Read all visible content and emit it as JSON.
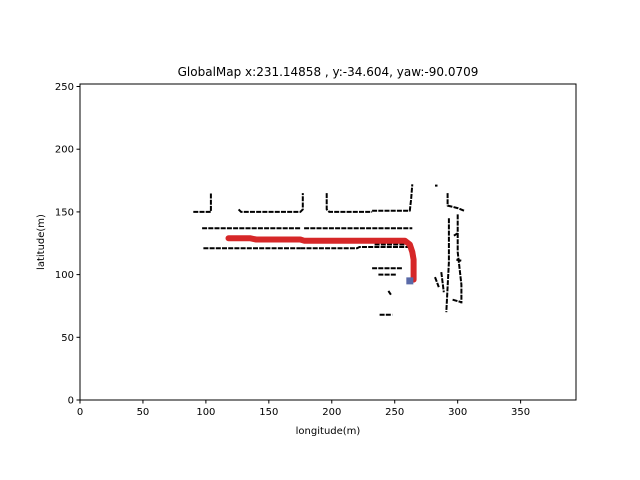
{
  "chart_data": {
    "type": "scatter",
    "title": "GlobalMap x:231.14858 , y:-34.604, yaw:-90.0709",
    "xlabel": "longitude(m)",
    "ylabel": "latitude(m)",
    "xlim": [
      0,
      394
    ],
    "ylim": [
      0,
      252
    ],
    "xticks": [
      0,
      50,
      100,
      150,
      200,
      250,
      300,
      350
    ],
    "yticks": [
      0,
      50,
      100,
      150,
      200,
      250
    ],
    "grid": false,
    "series": [
      {
        "name": "map-obstacles",
        "color": "#000000",
        "segments": [
          [
            [
              90,
              150
            ],
            [
              104,
              150
            ],
            [
              104,
              165
            ]
          ],
          [
            [
              126,
              152
            ],
            [
              128,
              150
            ],
            [
              175,
              150
            ],
            [
              177,
              152
            ],
            [
              177,
              165
            ]
          ],
          [
            [
              196,
              165
            ],
            [
              196,
              152
            ],
            [
              198,
              150
            ],
            [
              232,
              150
            ]
          ],
          [
            [
              232,
              151
            ],
            [
              262,
              151
            ],
            [
              263,
              160
            ],
            [
              264,
              172
            ]
          ],
          [
            [
              97,
              137
            ],
            [
              175,
              137
            ]
          ],
          [
            [
              178,
              137
            ],
            [
              264,
              137
            ]
          ],
          [
            [
              98,
              121
            ],
            [
              175,
              121
            ]
          ],
          [
            [
              175,
              121
            ],
            [
              220,
              121
            ],
            [
              222,
              122
            ],
            [
              262,
              122
            ]
          ],
          [
            [
              234,
              124
            ],
            [
              258,
              124
            ]
          ],
          [
            [
              292,
              165
            ],
            [
              292,
              155
            ],
            [
              300,
              153
            ],
            [
              305,
              151
            ]
          ],
          [
            [
              293,
              145
            ],
            [
              293,
              110
            ],
            [
              292,
              90
            ],
            [
              291,
              70
            ]
          ],
          [
            [
              300,
              148
            ],
            [
              300,
              118
            ],
            [
              303,
              92
            ],
            [
              303,
              77
            ]
          ],
          [
            [
              232,
              105
            ],
            [
              256,
              105
            ]
          ],
          [
            [
              237,
              100
            ],
            [
              251,
              100
            ]
          ],
          [
            [
              282,
              98
            ],
            [
              285,
              90
            ]
          ],
          [
            [
              287,
              102
            ],
            [
              289,
              86
            ]
          ],
          [
            [
              296,
              80
            ],
            [
              303,
              78
            ]
          ],
          [
            [
              238,
              68
            ],
            [
              248,
              68
            ]
          ],
          [
            [
              245,
              87
            ],
            [
              247,
              84
            ]
          ],
          [
            [
              282,
              171
            ],
            [
              284,
              171
            ]
          ],
          [
            [
              297,
              131
            ],
            [
              300,
              133
            ]
          ],
          [
            [
              299,
              112
            ],
            [
              303,
              111
            ]
          ]
        ]
      },
      {
        "name": "trajectory",
        "color": "#d62728",
        "points": [
          [
            118,
            129
          ],
          [
            135,
            129
          ],
          [
            140,
            128
          ],
          [
            175,
            128
          ],
          [
            178,
            127
          ],
          [
            225,
            127
          ],
          [
            250,
            127
          ],
          [
            258,
            127
          ],
          [
            262,
            124
          ],
          [
            264,
            118
          ],
          [
            265,
            112
          ],
          [
            265,
            96
          ]
        ]
      },
      {
        "name": "current-pose",
        "color": "#5a6aa8",
        "points": [
          [
            262,
            95
          ]
        ]
      }
    ]
  }
}
